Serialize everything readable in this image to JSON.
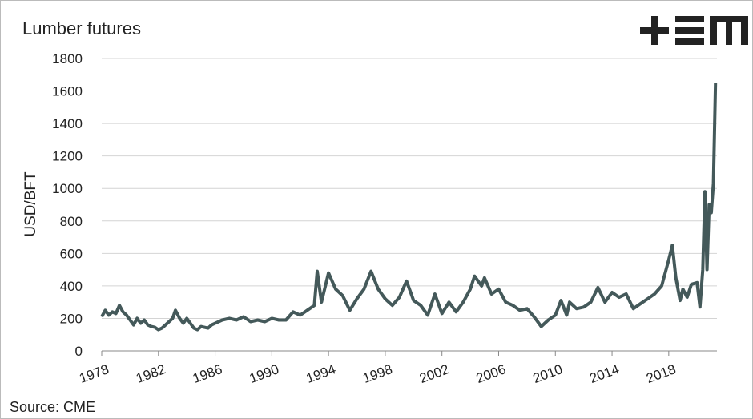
{
  "chart_data": {
    "type": "line",
    "title": "Lumber futures",
    "y_label": "USD/BFT",
    "source": "Source: CME",
    "color": "#44595a",
    "grid": true,
    "xlim": [
      1978,
      2021.4
    ],
    "xticks": [
      1978,
      1982,
      1986,
      1990,
      1994,
      1998,
      2002,
      2006,
      2010,
      2014,
      2018
    ],
    "ylim": [
      0,
      1800
    ],
    "yticks": [
      0,
      200,
      400,
      600,
      800,
      1000,
      1200,
      1400,
      1600,
      1800
    ],
    "x": [
      1978,
      1978.25,
      1978.5,
      1978.75,
      1979,
      1979.25,
      1979.5,
      1979.75,
      1980,
      1980.25,
      1980.5,
      1980.75,
      1981,
      1981.25,
      1981.5,
      1981.75,
      1982,
      1982.25,
      1982.5,
      1982.75,
      1983,
      1983.2,
      1983.5,
      1983.75,
      1984,
      1984.25,
      1984.5,
      1984.75,
      1985,
      1985.5,
      1985.75,
      1986,
      1986.5,
      1987,
      1987.5,
      1988,
      1988.5,
      1989,
      1989.5,
      1990,
      1990.5,
      1991,
      1991.5,
      1992,
      1992.5,
      1993,
      1993.2,
      1993.5,
      1994,
      1994.5,
      1995,
      1995.5,
      1996,
      1996.5,
      1997,
      1997.5,
      1998,
      1998.5,
      1999,
      1999.5,
      2000,
      2000.5,
      2001,
      2001.5,
      2002,
      2002.5,
      2003,
      2003.5,
      2004,
      2004.3,
      2004.8,
      2005,
      2005.5,
      2006,
      2006.5,
      2007,
      2007.5,
      2008,
      2008.5,
      2009,
      2009.5,
      2010,
      2010.4,
      2010.8,
      2011,
      2011.5,
      2012,
      2012.5,
      2013,
      2013.5,
      2014,
      2014.5,
      2015,
      2015.5,
      2016,
      2016.5,
      2017,
      2017.5,
      2018,
      2018.25,
      2018.5,
      2018.8,
      2019,
      2019.3,
      2019.6,
      2020,
      2020.2,
      2020.4,
      2020.55,
      2020.7,
      2020.85,
      2021,
      2021.15,
      2021.3
    ],
    "values": [
      210,
      250,
      220,
      240,
      230,
      280,
      240,
      220,
      190,
      160,
      200,
      170,
      190,
      160,
      150,
      145,
      130,
      140,
      160,
      180,
      200,
      250,
      200,
      170,
      200,
      170,
      140,
      130,
      150,
      140,
      160,
      170,
      190,
      200,
      190,
      210,
      180,
      190,
      180,
      200,
      190,
      190,
      240,
      220,
      250,
      280,
      490,
      300,
      480,
      380,
      340,
      250,
      320,
      380,
      490,
      380,
      320,
      280,
      330,
      430,
      310,
      280,
      220,
      350,
      230,
      300,
      240,
      300,
      380,
      460,
      400,
      450,
      350,
      380,
      300,
      280,
      250,
      260,
      210,
      150,
      190,
      220,
      310,
      220,
      300,
      260,
      270,
      300,
      390,
      300,
      360,
      330,
      350,
      260,
      290,
      320,
      350,
      400,
      560,
      650,
      450,
      310,
      380,
      330,
      410,
      420,
      270,
      500,
      980,
      500,
      900,
      850,
      1030,
      1650
    ]
  }
}
